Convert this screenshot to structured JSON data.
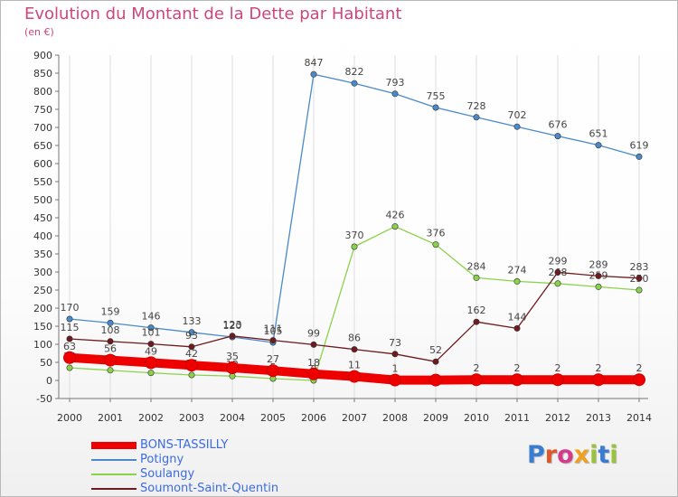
{
  "header": {
    "title": "Evolution du Montant de la Dette par Habitant",
    "unit": "(en €)"
  },
  "brand": {
    "letters": [
      "P",
      "r",
      "o",
      "x",
      "i",
      "t",
      "i"
    ],
    "colors": [
      "#3a7cd1",
      "#e2562a",
      "#d53a8b",
      "#f0a020",
      "#9bc33a",
      "#3a7cd1",
      "#9bc33a"
    ]
  },
  "chart_data": {
    "type": "line",
    "title": "Evolution du Montant de la Dette par Habitant",
    "ylabel": "(en €)",
    "ylim": [
      -50,
      900
    ],
    "yticks": [
      -50,
      0,
      50,
      100,
      150,
      200,
      250,
      300,
      350,
      400,
      450,
      500,
      550,
      600,
      650,
      700,
      750,
      800,
      850,
      900
    ],
    "categories": [
      "2000",
      "2001",
      "2002",
      "2003",
      "2004",
      "2005",
      "2006",
      "2007",
      "2008",
      "2009",
      "2010",
      "2011",
      "2012",
      "2013",
      "2014"
    ],
    "grid": "vertical",
    "series": [
      {
        "name": "BONS-TASSILLY",
        "color": "#ee0000",
        "emphasis": true,
        "values": [
          63,
          56,
          49,
          42,
          35,
          27,
          18,
          11,
          1,
          1,
          2,
          2,
          2,
          2,
          2
        ],
        "labels": [
          "63",
          "56",
          "49",
          "42",
          "35",
          "27",
          "18",
          "11",
          "1",
          "",
          "2",
          "2",
          "2",
          "2",
          "2"
        ]
      },
      {
        "name": "Potigny",
        "color": "#4a8ac8",
        "values": [
          170,
          159,
          146,
          133,
          120,
          105,
          847,
          822,
          793,
          755,
          728,
          702,
          676,
          651,
          619
        ],
        "labels": [
          "170",
          "159",
          "146",
          "133",
          "120",
          "105",
          "847",
          "822",
          "793",
          "755",
          "728",
          "702",
          "676",
          "651",
          "619"
        ]
      },
      {
        "name": "Soulangy",
        "color": "#8bd24c",
        "values": [
          35,
          28,
          21,
          15,
          12,
          5,
          0,
          370,
          426,
          376,
          284,
          274,
          268,
          259,
          250
        ],
        "labels": [
          "35",
          "28",
          "21",
          "15",
          "12",
          "5",
          "0",
          "370",
          "426",
          "376",
          "284",
          "274",
          "268",
          "259",
          "250"
        ]
      },
      {
        "name": "Soumont-Saint-Quentin",
        "color": "#6e1a1e",
        "values": [
          115,
          108,
          101,
          93,
          123,
          111,
          99,
          86,
          73,
          52,
          162,
          144,
          299,
          289,
          283
        ],
        "labels": [
          "115",
          "108",
          "101",
          "93",
          "123",
          "111",
          "99",
          "86",
          "73",
          "52",
          "162",
          "144",
          "299",
          "289",
          "283"
        ]
      }
    ]
  }
}
